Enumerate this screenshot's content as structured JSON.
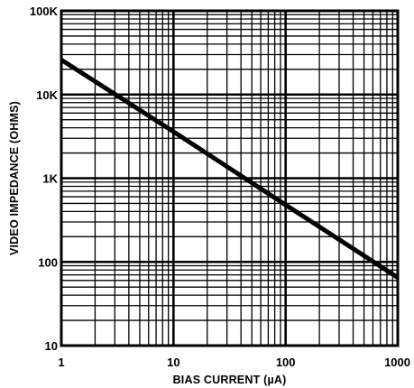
{
  "chart_data": {
    "type": "line",
    "title": "",
    "xlabel": "BIAS CURRENT (µA)",
    "ylabel": "VIDEO IMPEDANCE (OHMS)",
    "x_scale": "log",
    "y_scale": "log",
    "xlim": [
      1,
      1000
    ],
    "ylim": [
      10,
      100000
    ],
    "x_ticks": [
      {
        "value": 1,
        "label": "1"
      },
      {
        "value": 10,
        "label": "10"
      },
      {
        "value": 100,
        "label": "100"
      },
      {
        "value": 1000,
        "label": "1000"
      }
    ],
    "y_ticks": [
      {
        "value": 100000,
        "label": "100K"
      },
      {
        "value": 10000,
        "label": "10K"
      },
      {
        "value": 1000,
        "label": "1K"
      },
      {
        "value": 100,
        "label": "100"
      },
      {
        "value": 10,
        "label": "10"
      }
    ],
    "grid": true,
    "grid_minor": true,
    "series": [
      {
        "name": "",
        "x": [
          1,
          10,
          100,
          1000
        ],
        "y": [
          26000,
          3600,
          480,
          65
        ]
      }
    ],
    "colors": {
      "line": "#000000",
      "grid": "#000000",
      "background": "#ffffff"
    }
  }
}
